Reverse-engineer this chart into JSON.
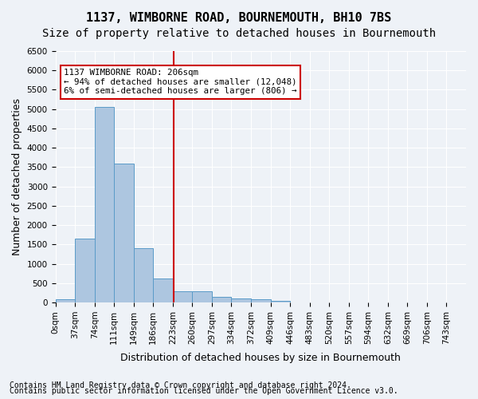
{
  "title": "1137, WIMBORNE ROAD, BOURNEMOUTH, BH10 7BS",
  "subtitle": "Size of property relative to detached houses in Bournemouth",
  "xlabel": "Distribution of detached houses by size in Bournemouth",
  "ylabel": "Number of detached properties",
  "footer1": "Contains HM Land Registry data © Crown copyright and database right 2024.",
  "footer2": "Contains public sector information licensed under the Open Government Licence v3.0.",
  "bin_labels": [
    "0sqm",
    "37sqm",
    "74sqm",
    "111sqm",
    "149sqm",
    "186sqm",
    "223sqm",
    "260sqm",
    "297sqm",
    "334sqm",
    "372sqm",
    "409sqm",
    "446sqm",
    "483sqm",
    "520sqm",
    "557sqm",
    "594sqm",
    "632sqm",
    "669sqm",
    "706sqm",
    "743sqm"
  ],
  "bar_values": [
    80,
    1650,
    5050,
    3600,
    1400,
    620,
    290,
    290,
    150,
    110,
    80,
    40,
    10,
    0,
    0,
    0,
    0,
    0,
    0,
    0
  ],
  "bar_color": "#adc6e0",
  "bar_edge_color": "#5a9bc8",
  "ylim": [
    0,
    6500
  ],
  "yticks": [
    0,
    500,
    1000,
    1500,
    2000,
    2500,
    3000,
    3500,
    4000,
    4500,
    5000,
    5500,
    6000,
    6500
  ],
  "vline_x": 5.54,
  "vline_color": "#cc0000",
  "annotation_text": "1137 WIMBORNE ROAD: 206sqm\n← 94% of detached houses are smaller (12,048)\n6% of semi-detached houses are larger (806) →",
  "annotation_box_color": "#cc0000",
  "bg_color": "#eef2f7",
  "grid_color": "#ffffff",
  "title_fontsize": 11,
  "subtitle_fontsize": 10,
  "axis_label_fontsize": 9,
  "tick_fontsize": 7.5,
  "footer_fontsize": 7
}
